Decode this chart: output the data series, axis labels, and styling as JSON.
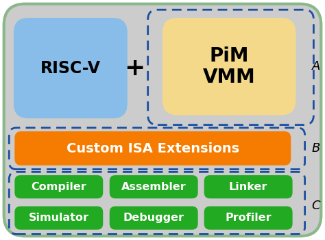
{
  "bg_color": "#cccccc",
  "outer_edge_color": "#8ab88a",
  "risc_v_color": "#87bde8",
  "pim_vmm_color": "#f5d98b",
  "isa_color": "#f57c00",
  "green_color": "#22aa22",
  "white": "#ffffff",
  "black": "#000000",
  "dashed_blue": "#1a4fa0",
  "title_A": "A",
  "title_B": "B",
  "title_C": "C",
  "risc_v_label": "RISC-V",
  "plus_label": "+",
  "pim_vmm_label": "PiM\nVMM",
  "isa_label": "Custom ISA Extensions",
  "tool_labels_row1": [
    "Compiler",
    "Assembler",
    "Linker"
  ],
  "tool_labels_row2": [
    "Simulator",
    "Debugger",
    "Profiler"
  ]
}
